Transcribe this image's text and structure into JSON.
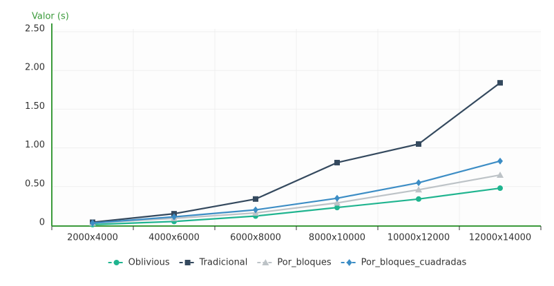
{
  "chart_data": {
    "type": "line",
    "y_label": "Valor (s)",
    "categories": [
      "2000x4000",
      "4000x6000",
      "6000x8000",
      "8000x10000",
      "10000x12000",
      "12000x14000"
    ],
    "series": [
      {
        "name": "Oblivious",
        "color": "#1fb48f",
        "marker": "circle",
        "values": [
          0.01,
          0.05,
          0.12,
          0.23,
          0.34,
          0.48
        ]
      },
      {
        "name": "Tradicional",
        "color": "#34495e",
        "marker": "square",
        "values": [
          0.04,
          0.15,
          0.34,
          0.81,
          1.05,
          1.84
        ]
      },
      {
        "name": "Por_bloques",
        "color": "#bdc3c7",
        "marker": "triangle",
        "values": [
          0.03,
          0.09,
          0.16,
          0.29,
          0.46,
          0.65
        ]
      },
      {
        "name": "Por_bloques_cuadradas",
        "color": "#3c8dc5",
        "marker": "diamond",
        "values": [
          0.03,
          0.11,
          0.2,
          0.35,
          0.55,
          0.83
        ]
      }
    ],
    "ylim": [
      0,
      2.5
    ],
    "yticks": [
      0,
      {
        "value": 0.5,
        "label": "0.50"
      },
      {
        "value": 1,
        "label": "1.00"
      },
      {
        "value": 1.5,
        "label": "1.50"
      },
      {
        "value": 2,
        "label": "2.00"
      },
      {
        "value": 2.5,
        "label": "2.50"
      }
    ],
    "grid": true,
    "legend": "bottom"
  }
}
